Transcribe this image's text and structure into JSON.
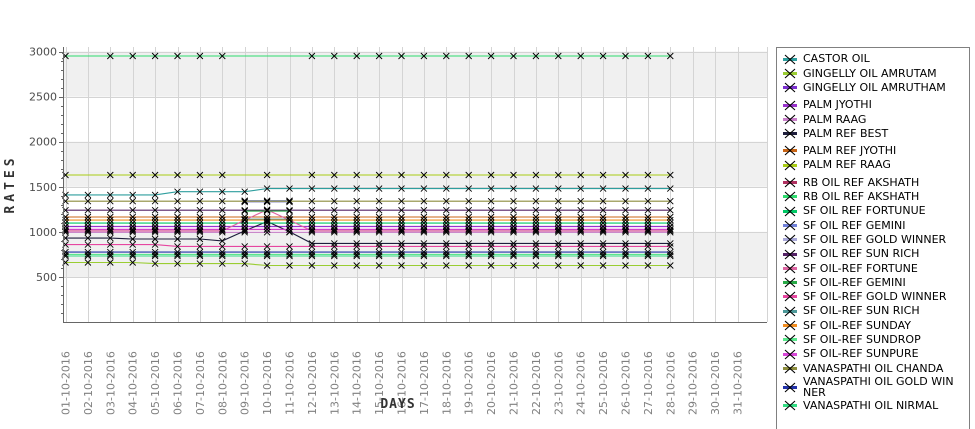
{
  "colors": {
    "plot_background": "#FFFFFF",
    "band_fill": "#F0F0F0",
    "gridline": "#D4D4D4",
    "axis_line": "#666666",
    "y_tick_label": "#4D4D4D",
    "x_tick_label": "#808080",
    "axis_title": "#333333",
    "legend_border": "#808080",
    "legend_background": "#FFFFFF",
    "marker": "#000000"
  },
  "chart_data": {
    "type": "line",
    "title": "",
    "xlabel": "DAYS",
    "ylabel": "RATES",
    "legend_position": "right",
    "grid": true,
    "marker_shape": "x",
    "ylim": [
      0,
      3050
    ],
    "yticks": [
      500,
      1000,
      1500,
      2000,
      2500,
      3000
    ],
    "minor_tick_step": 100,
    "background_bands": [
      [
        500,
        1000
      ],
      [
        1500,
        2000
      ],
      [
        2500,
        3000
      ]
    ],
    "x_categories": [
      "01-10-2016",
      "02-10-2016",
      "03-10-2016",
      "04-10-2016",
      "05-10-2016",
      "06-10-2016",
      "07-10-2016",
      "08-10-2016",
      "09-10-2016",
      "10-10-2016",
      "11-10-2016",
      "12-10-2016",
      "13-10-2016",
      "14-10-2016",
      "15-10-2016",
      "16-10-2016",
      "17-10-2016",
      "18-10-2016",
      "19-10-2016",
      "20-10-2016",
      "21-10-2016",
      "22-10-2016",
      "23-10-2016",
      "24-10-2016",
      "25-10-2016",
      "26-10-2016",
      "27-10-2016",
      "28-10-2016",
      "29-10-2016",
      "30-10-2016",
      "31-10-2016"
    ],
    "series": [
      {
        "name": "CASTOR OIL",
        "color": "#2E9E9E",
        "runs": [
          [
            5,
            1410
          ],
          [
            4,
            1445
          ],
          [
            19,
            1480
          ],
          [
            3,
            null
          ]
        ]
      },
      {
        "name": "GINGELLY OIL AMRUTAM",
        "color": "#9ACD32",
        "runs": [
          [
            4,
            660
          ],
          [
            5,
            648
          ],
          [
            19,
            627
          ],
          [
            3,
            null
          ]
        ]
      },
      {
        "name": "GINGELLY OIL AMRUTHAM",
        "color": "#7B2FD0",
        "runs": [
          [
            28,
            1060
          ],
          [
            3,
            null
          ]
        ]
      },
      {
        "name": "PALM JYOTHI",
        "color": "#9932CC",
        "runs": [
          [
            28,
            1058
          ],
          [
            3,
            null
          ]
        ]
      },
      {
        "name": "PALM RAAG",
        "color": "#C87EC8",
        "runs": [
          [
            28,
            995
          ],
          [
            3,
            null
          ]
        ]
      },
      {
        "name": "PALM REF BEST",
        "color": "#1E1E3C",
        "runs": [
          [
            3,
            930
          ],
          [
            4,
            920
          ],
          [
            1,
            900
          ],
          [
            1,
            1010
          ],
          [
            1,
            1115
          ],
          [
            1,
            1000
          ],
          [
            17,
            872
          ],
          [
            3,
            null
          ]
        ]
      },
      {
        "name": "PALM REF JYOTHI",
        "color": "#C86414",
        "runs": [
          [
            28,
            1165
          ],
          [
            3,
            null
          ]
        ]
      },
      {
        "name": "PALM REF RAAG",
        "color": "#A8CC14",
        "runs": [
          [
            28,
            1630
          ],
          [
            3,
            null
          ]
        ],
        "marker_gaps_days": [
          2,
          9,
          11
        ]
      },
      {
        "name": "RB OIL REF  AKSHATH",
        "color": "#B03060",
        "runs": [
          [
            28,
            1025
          ],
          [
            3,
            null
          ]
        ]
      },
      {
        "name": "RB OIL REF AKSHATH",
        "color": "#2EDC6E",
        "runs": [
          [
            28,
            2950
          ],
          [
            3,
            null
          ]
        ],
        "marker_gaps_days": [
          2,
          9,
          10,
          11
        ]
      },
      {
        "name": "SF OIL REF FORTUNUE",
        "color": "#00C864",
        "runs": [
          [
            28,
            1097
          ],
          [
            3,
            null
          ]
        ]
      },
      {
        "name": "SF OIL REF GEMINI",
        "color": "#7080D8",
        "runs": [
          [
            8,
            null
          ],
          [
            3,
            1345
          ],
          [
            20,
            null
          ]
        ]
      },
      {
        "name": "SF OIL REF GOLD WINNER",
        "color": "#A8A8D8",
        "runs": [
          [
            8,
            null
          ],
          [
            3,
            1330
          ],
          [
            20,
            null
          ]
        ]
      },
      {
        "name": "SF OIL REF SUN RICH",
        "color": "#552266",
        "runs": [
          [
            28,
            1240
          ],
          [
            3,
            null
          ]
        ]
      },
      {
        "name": "SF OIL-REF FORTUNE",
        "color": "#DC64A0",
        "runs": [
          [
            8,
            1010
          ],
          [
            1,
            1130
          ],
          [
            1,
            1245
          ],
          [
            1,
            1130
          ],
          [
            17,
            1010
          ],
          [
            3,
            null
          ]
        ]
      },
      {
        "name": "SF OIL-REF GEMINI",
        "color": "#28AA46",
        "runs": [
          [
            8,
            null
          ],
          [
            3,
            1230
          ],
          [
            20,
            null
          ]
        ]
      },
      {
        "name": "SF OIL-REF GOLD WINNER",
        "color": "#E646A0",
        "runs": [
          [
            5,
            858
          ],
          [
            23,
            838
          ],
          [
            3,
            null
          ]
        ]
      },
      {
        "name": "SF OIL-REF SUN RICH",
        "color": "#4C9898",
        "runs": [
          [
            8,
            null
          ],
          [
            3,
            1140
          ],
          [
            20,
            null
          ]
        ]
      },
      {
        "name": "SF OIL-REF SUNDAY",
        "color": "#F08C1E",
        "runs": [
          [
            28,
            1130
          ],
          [
            3,
            null
          ]
        ]
      },
      {
        "name": "SF OIL-REF SUNDROP",
        "color": "#5AE68C",
        "runs": [
          [
            28,
            750
          ],
          [
            3,
            null
          ]
        ]
      },
      {
        "name": "SF OIL-REF SUNPURE",
        "color": "#D746D7",
        "runs": [
          [
            28,
            1028
          ],
          [
            3,
            null
          ]
        ]
      },
      {
        "name": "VANASPATHI OIL CHANDA",
        "color": "#8C8C3C",
        "runs": [
          [
            28,
            1340
          ],
          [
            3,
            null
          ]
        ]
      },
      {
        "name": "VANASPATHI OIL GOLD WINNER",
        "color": "#2232AA",
        "runs": [
          [
            28,
            775
          ],
          [
            3,
            null
          ]
        ]
      },
      {
        "name": "VANASPATHI OIL NIRMAL",
        "color": "#32DC82",
        "runs": [
          [
            28,
            732
          ],
          [
            3,
            null
          ]
        ]
      }
    ]
  }
}
